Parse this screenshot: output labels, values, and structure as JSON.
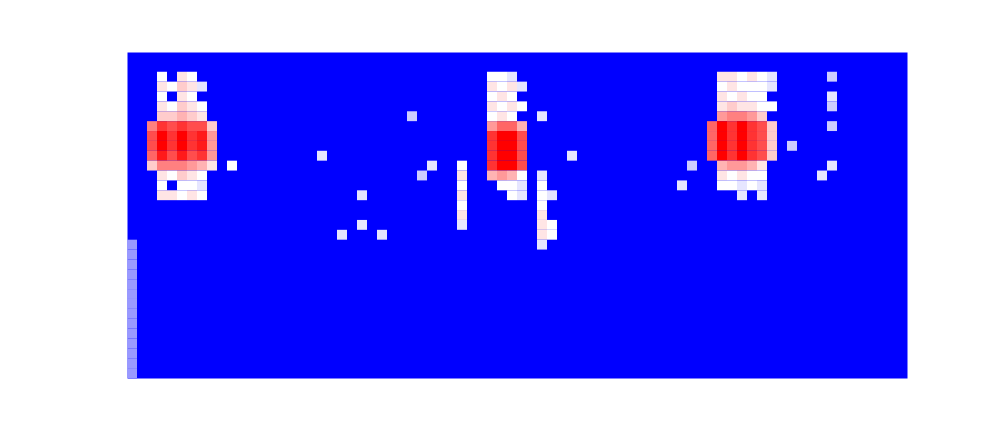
{
  "chart_data": {
    "type": "heatmap",
    "tick_labels": false,
    "xlim": [
      0,
      78
    ],
    "ylim": [
      33,
      0
    ],
    "color_range": [
      0,
      1
    ],
    "cells": [
      [
        3,
        2,
        0.5
      ],
      [
        5,
        2,
        0.55
      ],
      [
        6,
        2,
        0.5
      ],
      [
        3,
        3,
        0.55
      ],
      [
        4,
        3,
        0.5
      ],
      [
        5,
        3,
        0.6
      ],
      [
        6,
        3,
        0.55
      ],
      [
        7,
        3,
        0.45
      ],
      [
        3,
        4,
        0.5
      ],
      [
        5,
        4,
        0.55
      ],
      [
        6,
        4,
        0.5
      ],
      [
        3,
        5,
        0.55
      ],
      [
        4,
        5,
        0.5
      ],
      [
        5,
        5,
        0.6
      ],
      [
        6,
        5,
        0.55
      ],
      [
        7,
        5,
        0.5
      ],
      [
        3,
        6,
        0.6
      ],
      [
        4,
        6,
        0.6
      ],
      [
        5,
        6,
        0.65
      ],
      [
        6,
        6,
        0.6
      ],
      [
        7,
        6,
        0.55
      ],
      [
        2,
        7,
        0.75
      ],
      [
        3,
        7,
        0.9
      ],
      [
        4,
        7,
        0.85
      ],
      [
        5,
        7,
        0.9
      ],
      [
        6,
        7,
        0.85
      ],
      [
        7,
        7,
        0.85
      ],
      [
        8,
        7,
        0.6
      ],
      [
        2,
        8,
        0.85
      ],
      [
        3,
        8,
        1
      ],
      [
        4,
        8,
        0.9
      ],
      [
        5,
        8,
        1
      ],
      [
        6,
        8,
        0.9
      ],
      [
        7,
        8,
        0.95
      ],
      [
        8,
        8,
        0.7
      ],
      [
        2,
        9,
        0.85
      ],
      [
        3,
        9,
        1
      ],
      [
        4,
        9,
        0.9
      ],
      [
        5,
        9,
        1
      ],
      [
        6,
        9,
        0.9
      ],
      [
        7,
        9,
        0.95
      ],
      [
        8,
        9,
        0.7
      ],
      [
        2,
        10,
        0.8
      ],
      [
        3,
        10,
        0.95
      ],
      [
        4,
        10,
        0.85
      ],
      [
        5,
        10,
        0.95
      ],
      [
        6,
        10,
        0.85
      ],
      [
        7,
        10,
        0.9
      ],
      [
        8,
        10,
        0.7
      ],
      [
        2,
        11,
        0.6
      ],
      [
        3,
        11,
        0.75
      ],
      [
        4,
        11,
        0.75
      ],
      [
        5,
        11,
        0.75
      ],
      [
        6,
        11,
        0.7
      ],
      [
        7,
        11,
        0.65
      ],
      [
        8,
        11,
        0.55
      ],
      [
        10,
        11,
        0.5
      ],
      [
        3,
        12,
        0.55
      ],
      [
        4,
        12,
        0.5
      ],
      [
        5,
        12,
        0.6
      ],
      [
        6,
        12,
        0.55
      ],
      [
        7,
        12,
        0.5
      ],
      [
        3,
        13,
        0.5
      ],
      [
        5,
        13,
        0.5
      ],
      [
        6,
        13,
        0.5
      ],
      [
        7,
        13,
        0.45
      ],
      [
        3,
        14,
        0.55
      ],
      [
        4,
        14,
        0.55
      ],
      [
        5,
        14,
        0.5
      ],
      [
        6,
        14,
        0.55
      ],
      [
        7,
        14,
        0.5
      ],
      [
        36,
        2,
        0.5
      ],
      [
        37,
        2,
        0.5
      ],
      [
        38,
        2,
        0.45
      ],
      [
        36,
        3,
        0.55
      ],
      [
        37,
        3,
        0.5
      ],
      [
        38,
        3,
        0.55
      ],
      [
        39,
        3,
        0.45
      ],
      [
        36,
        4,
        0.5
      ],
      [
        37,
        4,
        0.55
      ],
      [
        38,
        4,
        0.5
      ],
      [
        36,
        5,
        0.55
      ],
      [
        37,
        5,
        0.5
      ],
      [
        38,
        5,
        0.55
      ],
      [
        39,
        5,
        0.5
      ],
      [
        36,
        6,
        0.5
      ],
      [
        37,
        6,
        0.55
      ],
      [
        38,
        6,
        0.5
      ],
      [
        41,
        6,
        0.45
      ],
      [
        36,
        7,
        0.7
      ],
      [
        37,
        7,
        0.8
      ],
      [
        38,
        7,
        0.8
      ],
      [
        39,
        7,
        0.65
      ],
      [
        36,
        8,
        0.9
      ],
      [
        37,
        8,
        1
      ],
      [
        38,
        8,
        1
      ],
      [
        39,
        8,
        0.85
      ],
      [
        36,
        9,
        0.9
      ],
      [
        37,
        9,
        1
      ],
      [
        38,
        9,
        1
      ],
      [
        39,
        9,
        0.85
      ],
      [
        36,
        10,
        0.9
      ],
      [
        37,
        10,
        1
      ],
      [
        38,
        10,
        1
      ],
      [
        39,
        10,
        0.85
      ],
      [
        36,
        11,
        0.9
      ],
      [
        37,
        11,
        1
      ],
      [
        38,
        11,
        1
      ],
      [
        39,
        11,
        0.85
      ],
      [
        36,
        12,
        0.65
      ],
      [
        37,
        12,
        0.7
      ],
      [
        38,
        12,
        0.65
      ],
      [
        39,
        12,
        0.5
      ],
      [
        37,
        13,
        0.5
      ],
      [
        38,
        13,
        0.5
      ],
      [
        39,
        13,
        0.45
      ],
      [
        38,
        14,
        0.5
      ],
      [
        39,
        14,
        0.45
      ],
      [
        33,
        11,
        0.5
      ],
      [
        33,
        12,
        0.55
      ],
      [
        33,
        13,
        0.5
      ],
      [
        33,
        14,
        0.55
      ],
      [
        33,
        15,
        0.5
      ],
      [
        33,
        16,
        0.55
      ],
      [
        33,
        17,
        0.45
      ],
      [
        41,
        12,
        0.45
      ],
      [
        41,
        13,
        0.5
      ],
      [
        41,
        14,
        0.5
      ],
      [
        42,
        14,
        0.45
      ],
      [
        41,
        15,
        0.5
      ],
      [
        41,
        16,
        0.55
      ],
      [
        41,
        17,
        0.55
      ],
      [
        42,
        17,
        0.5
      ],
      [
        41,
        18,
        0.55
      ],
      [
        42,
        18,
        0.5
      ],
      [
        41,
        19,
        0.45
      ],
      [
        19,
        10,
        0.45
      ],
      [
        23,
        14,
        0.45
      ],
      [
        21,
        18,
        0.45
      ],
      [
        23,
        17,
        0.45
      ],
      [
        25,
        18,
        0.45
      ],
      [
        28,
        6,
        0.4
      ],
      [
        30,
        11,
        0.45
      ],
      [
        29,
        12,
        0.4
      ],
      [
        44,
        10,
        0.45
      ],
      [
        59,
        2,
        0.55
      ],
      [
        60,
        2,
        0.55
      ],
      [
        61,
        2,
        0.5
      ],
      [
        62,
        2,
        0.55
      ],
      [
        63,
        2,
        0.5
      ],
      [
        64,
        2,
        0.45
      ],
      [
        59,
        3,
        0.5
      ],
      [
        60,
        3,
        0.55
      ],
      [
        61,
        3,
        0.5
      ],
      [
        62,
        3,
        0.5
      ],
      [
        63,
        3,
        0.5
      ],
      [
        64,
        3,
        0.45
      ],
      [
        59,
        4,
        0.55
      ],
      [
        60,
        4,
        0.5
      ],
      [
        61,
        4,
        0.55
      ],
      [
        62,
        4,
        0.5
      ],
      [
        63,
        4,
        0.5
      ],
      [
        59,
        5,
        0.55
      ],
      [
        60,
        5,
        0.6
      ],
      [
        61,
        5,
        0.55
      ],
      [
        62,
        5,
        0.55
      ],
      [
        63,
        5,
        0.5
      ],
      [
        64,
        5,
        0.5
      ],
      [
        59,
        6,
        0.7
      ],
      [
        60,
        6,
        0.75
      ],
      [
        61,
        6,
        0.75
      ],
      [
        62,
        6,
        0.7
      ],
      [
        63,
        6,
        0.6
      ],
      [
        58,
        7,
        0.8
      ],
      [
        59,
        7,
        1
      ],
      [
        60,
        7,
        0.9
      ],
      [
        61,
        7,
        1
      ],
      [
        62,
        7,
        0.9
      ],
      [
        63,
        7,
        0.85
      ],
      [
        64,
        7,
        0.6
      ],
      [
        58,
        8,
        0.8
      ],
      [
        59,
        8,
        1
      ],
      [
        60,
        8,
        0.9
      ],
      [
        61,
        8,
        1
      ],
      [
        62,
        8,
        0.9
      ],
      [
        63,
        8,
        0.85
      ],
      [
        64,
        8,
        0.6
      ],
      [
        58,
        9,
        0.8
      ],
      [
        59,
        9,
        1
      ],
      [
        60,
        9,
        0.9
      ],
      [
        61,
        9,
        1
      ],
      [
        62,
        9,
        0.9
      ],
      [
        63,
        9,
        0.85
      ],
      [
        64,
        9,
        0.6
      ],
      [
        58,
        10,
        0.8
      ],
      [
        59,
        10,
        1
      ],
      [
        60,
        10,
        0.9
      ],
      [
        61,
        10,
        1
      ],
      [
        62,
        10,
        0.9
      ],
      [
        63,
        10,
        0.85
      ],
      [
        64,
        10,
        0.6
      ],
      [
        59,
        11,
        0.65
      ],
      [
        60,
        11,
        0.7
      ],
      [
        61,
        11,
        0.7
      ],
      [
        62,
        11,
        0.65
      ],
      [
        63,
        11,
        0.55
      ],
      [
        59,
        12,
        0.55
      ],
      [
        60,
        12,
        0.5
      ],
      [
        61,
        12,
        0.55
      ],
      [
        62,
        12,
        0.5
      ],
      [
        63,
        12,
        0.5
      ],
      [
        59,
        13,
        0.5
      ],
      [
        60,
        13,
        0.5
      ],
      [
        61,
        13,
        0.45
      ],
      [
        62,
        13,
        0.5
      ],
      [
        63,
        13,
        0.45
      ],
      [
        61,
        14,
        0.45
      ],
      [
        63,
        14,
        0.45
      ],
      [
        70,
        2,
        0.4
      ],
      [
        70,
        4,
        0.45
      ],
      [
        70,
        5,
        0.4
      ],
      [
        70,
        7,
        0.4
      ],
      [
        70,
        11,
        0.45
      ],
      [
        69,
        12,
        0.45
      ],
      [
        56,
        11,
        0.4
      ],
      [
        55,
        13,
        0.45
      ],
      [
        66,
        9,
        0.4
      ],
      [
        0,
        19,
        0.3
      ],
      [
        0,
        20,
        0.3
      ],
      [
        0,
        21,
        0.3
      ],
      [
        0,
        22,
        0.3
      ],
      [
        0,
        23,
        0.3
      ],
      [
        0,
        24,
        0.3
      ],
      [
        0,
        25,
        0.3
      ],
      [
        0,
        26,
        0.3
      ],
      [
        0,
        27,
        0.3
      ],
      [
        0,
        28,
        0.3
      ],
      [
        0,
        29,
        0.3
      ],
      [
        0,
        30,
        0.3
      ],
      [
        0,
        31,
        0.3
      ],
      [
        0,
        32,
        0.3
      ]
    ]
  }
}
